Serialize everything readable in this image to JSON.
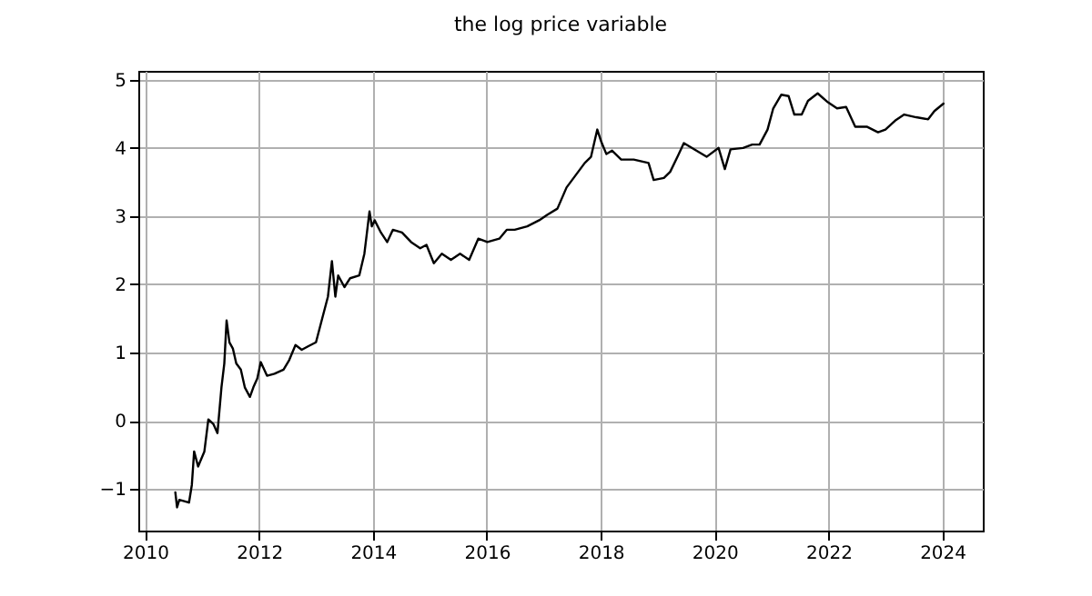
{
  "chart_data": {
    "type": "line",
    "title": "the log price variable",
    "x": [
      2010.53,
      2010.56,
      2010.6,
      2010.77,
      2010.82,
      2010.86,
      2010.93,
      2011.04,
      2011.11,
      2011.2,
      2011.27,
      2011.34,
      2011.39,
      2011.43,
      2011.48,
      2011.54,
      2011.6,
      2011.68,
      2011.75,
      2011.84,
      2011.9,
      2011.97,
      2012.03,
      2012.14,
      2012.27,
      2012.43,
      2012.53,
      2012.64,
      2012.75,
      2012.86,
      2013.0,
      2013.1,
      2013.21,
      2013.28,
      2013.34,
      2013.39,
      2013.5,
      2013.6,
      2013.76,
      2013.85,
      2013.94,
      2013.98,
      2014.03,
      2014.14,
      2014.25,
      2014.35,
      2014.51,
      2014.67,
      2014.83,
      2014.94,
      2015.07,
      2015.21,
      2015.37,
      2015.53,
      2015.69,
      2015.85,
      2016.01,
      2016.22,
      2016.35,
      2016.49,
      2016.71,
      2016.92,
      2017.06,
      2017.24,
      2017.4,
      2017.56,
      2017.72,
      2017.83,
      2017.94,
      2018.01,
      2018.1,
      2018.2,
      2018.36,
      2018.58,
      2018.84,
      2018.93,
      2019.11,
      2019.22,
      2019.36,
      2019.46,
      2019.64,
      2019.86,
      2020.07,
      2020.18,
      2020.28,
      2020.5,
      2020.66,
      2020.79,
      2020.93,
      2021.03,
      2021.17,
      2021.3,
      2021.4,
      2021.53,
      2021.64,
      2021.81,
      2021.99,
      2022.15,
      2022.31,
      2022.47,
      2022.68,
      2022.87,
      2023.0,
      2023.17,
      2023.33,
      2023.54,
      2023.75,
      2023.86,
      2024.02
    ],
    "series": [
      {
        "color": "#000000",
        "values": [
          -1.05,
          -1.27,
          -1.16,
          -1.2,
          -0.94,
          -0.45,
          -0.67,
          -0.45,
          0.02,
          -0.05,
          -0.18,
          0.49,
          0.84,
          1.47,
          1.15,
          1.06,
          0.84,
          0.75,
          0.49,
          0.35,
          0.49,
          0.62,
          0.86,
          0.66,
          0.69,
          0.75,
          0.89,
          1.11,
          1.04,
          1.09,
          1.15,
          1.47,
          1.82,
          2.34,
          1.82,
          2.13,
          1.96,
          2.09,
          2.13,
          2.45,
          3.07,
          2.85,
          2.94,
          2.76,
          2.62,
          2.8,
          2.76,
          2.62,
          2.53,
          2.58,
          2.31,
          2.45,
          2.36,
          2.45,
          2.36,
          2.67,
          2.62,
          2.67,
          2.8,
          2.8,
          2.85,
          2.94,
          3.02,
          3.11,
          3.42,
          3.6,
          3.78,
          3.87,
          4.27,
          4.09,
          3.91,
          3.96,
          3.83,
          3.83,
          3.78,
          3.53,
          3.56,
          3.65,
          3.89,
          4.07,
          3.98,
          3.87,
          4.0,
          3.69,
          3.98,
          4.0,
          4.05,
          4.05,
          4.27,
          4.58,
          4.78,
          4.76,
          4.49,
          4.49,
          4.69,
          4.8,
          4.67,
          4.58,
          4.6,
          4.31,
          4.31,
          4.23,
          4.27,
          4.4,
          4.49,
          4.45,
          4.42,
          4.54,
          4.65
        ]
      }
    ],
    "xlim": [
      2009.88,
      2024.71
    ],
    "xticks": [
      2010,
      2012,
      2014,
      2016,
      2018,
      2020,
      2022,
      2024
    ],
    "ylim": [
      -1.61,
      5.13
    ],
    "yticks": [
      -1,
      0,
      1,
      2,
      3,
      4,
      5
    ],
    "grid": true,
    "marker": "none",
    "line_style": "solid"
  }
}
